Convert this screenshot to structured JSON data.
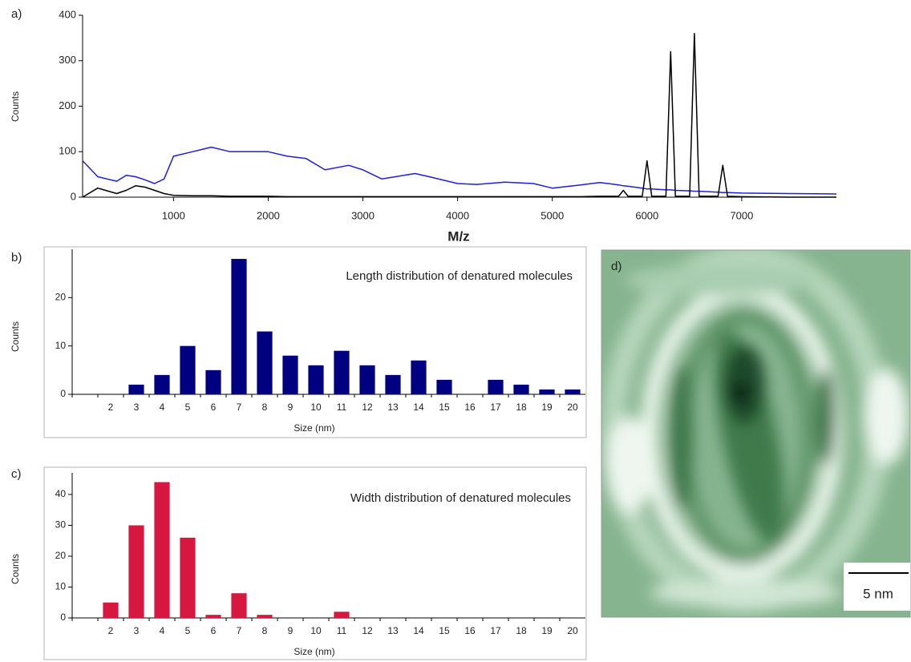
{
  "chart_data": [
    {
      "type": "line",
      "label": "a)",
      "xlabel": "M/z",
      "ylabel": "Counts",
      "x": [
        40,
        200,
        400,
        500,
        600,
        700,
        800,
        900,
        1000,
        1200,
        1400,
        1600,
        1800,
        2000,
        2200,
        2400,
        2600,
        2850,
        3000,
        3200,
        3550,
        3700,
        4000,
        4200,
        4500,
        4800,
        5000,
        5300,
        5500,
        5700,
        5750,
        5800,
        5950,
        6000,
        6050,
        6200,
        6250,
        6300,
        6450,
        6500,
        6550,
        6750,
        6800,
        6850,
        7000,
        7500,
        8000
      ],
      "series": [
        {
          "color": "#1f1fd6",
          "values": [
            80,
            45,
            35,
            48,
            45,
            38,
            30,
            40,
            90,
            100,
            110,
            100,
            100,
            100,
            90,
            85,
            60,
            70,
            60,
            40,
            52,
            45,
            30,
            28,
            33,
            30,
            20,
            27,
            32,
            27,
            25,
            24,
            20,
            18,
            18,
            16,
            16,
            15,
            14,
            13,
            13,
            11,
            10,
            10,
            9,
            8,
            7
          ]
        },
        {
          "color": "#000000",
          "values": [
            0,
            20,
            8,
            15,
            25,
            22,
            15,
            8,
            4,
            3,
            3,
            2,
            2,
            2,
            1,
            1,
            1,
            1,
            1,
            1,
            1,
            1,
            1,
            1,
            1,
            1,
            1,
            1,
            2,
            2,
            15,
            2,
            2,
            80,
            2,
            2,
            320,
            2,
            2,
            360,
            2,
            2,
            70,
            2,
            1,
            0,
            0
          ]
        }
      ],
      "xlim": [
        40,
        8000
      ],
      "xticks": [
        1000,
        2000,
        3000,
        4000,
        5000,
        6000,
        7000
      ],
      "ylim": [
        0,
        400
      ],
      "yticks": [
        0,
        100,
        200,
        300,
        400
      ]
    },
    {
      "type": "bar",
      "label": "b)",
      "annotation": "Length distribution of denatured molecules",
      "xlabel": "Size (nm)",
      "ylabel": "Counts",
      "categories": [
        null,
        2,
        3,
        4,
        5,
        6,
        7,
        8,
        9,
        10,
        11,
        12,
        13,
        14,
        15,
        16,
        17,
        18,
        19,
        20
      ],
      "values": [
        null,
        0,
        2,
        4,
        10,
        5,
        28,
        13,
        8,
        6,
        9,
        6,
        4,
        7,
        3,
        0,
        3,
        2,
        1,
        1
      ],
      "color": "#000080",
      "ylim": [
        0,
        30
      ],
      "yticks": [
        0,
        10,
        20
      ]
    },
    {
      "type": "bar",
      "label": "c)",
      "annotation": "Width distribution of denatured molecules",
      "xlabel": "Size (nm)",
      "ylabel": "Counts",
      "categories": [
        null,
        2,
        3,
        4,
        5,
        6,
        7,
        8,
        9,
        10,
        11,
        12,
        13,
        14,
        15,
        16,
        17,
        18,
        19,
        20
      ],
      "values": [
        null,
        5,
        30,
        44,
        26,
        1,
        8,
        1,
        0,
        0,
        2,
        0,
        0,
        0,
        0,
        0,
        0,
        0,
        0,
        0
      ],
      "color": "#d6173f",
      "ylim": [
        0,
        47
      ],
      "yticks": [
        0,
        10,
        20,
        30,
        40
      ]
    }
  ],
  "image": {
    "label": "d)",
    "scale_bar": "5 nm"
  }
}
